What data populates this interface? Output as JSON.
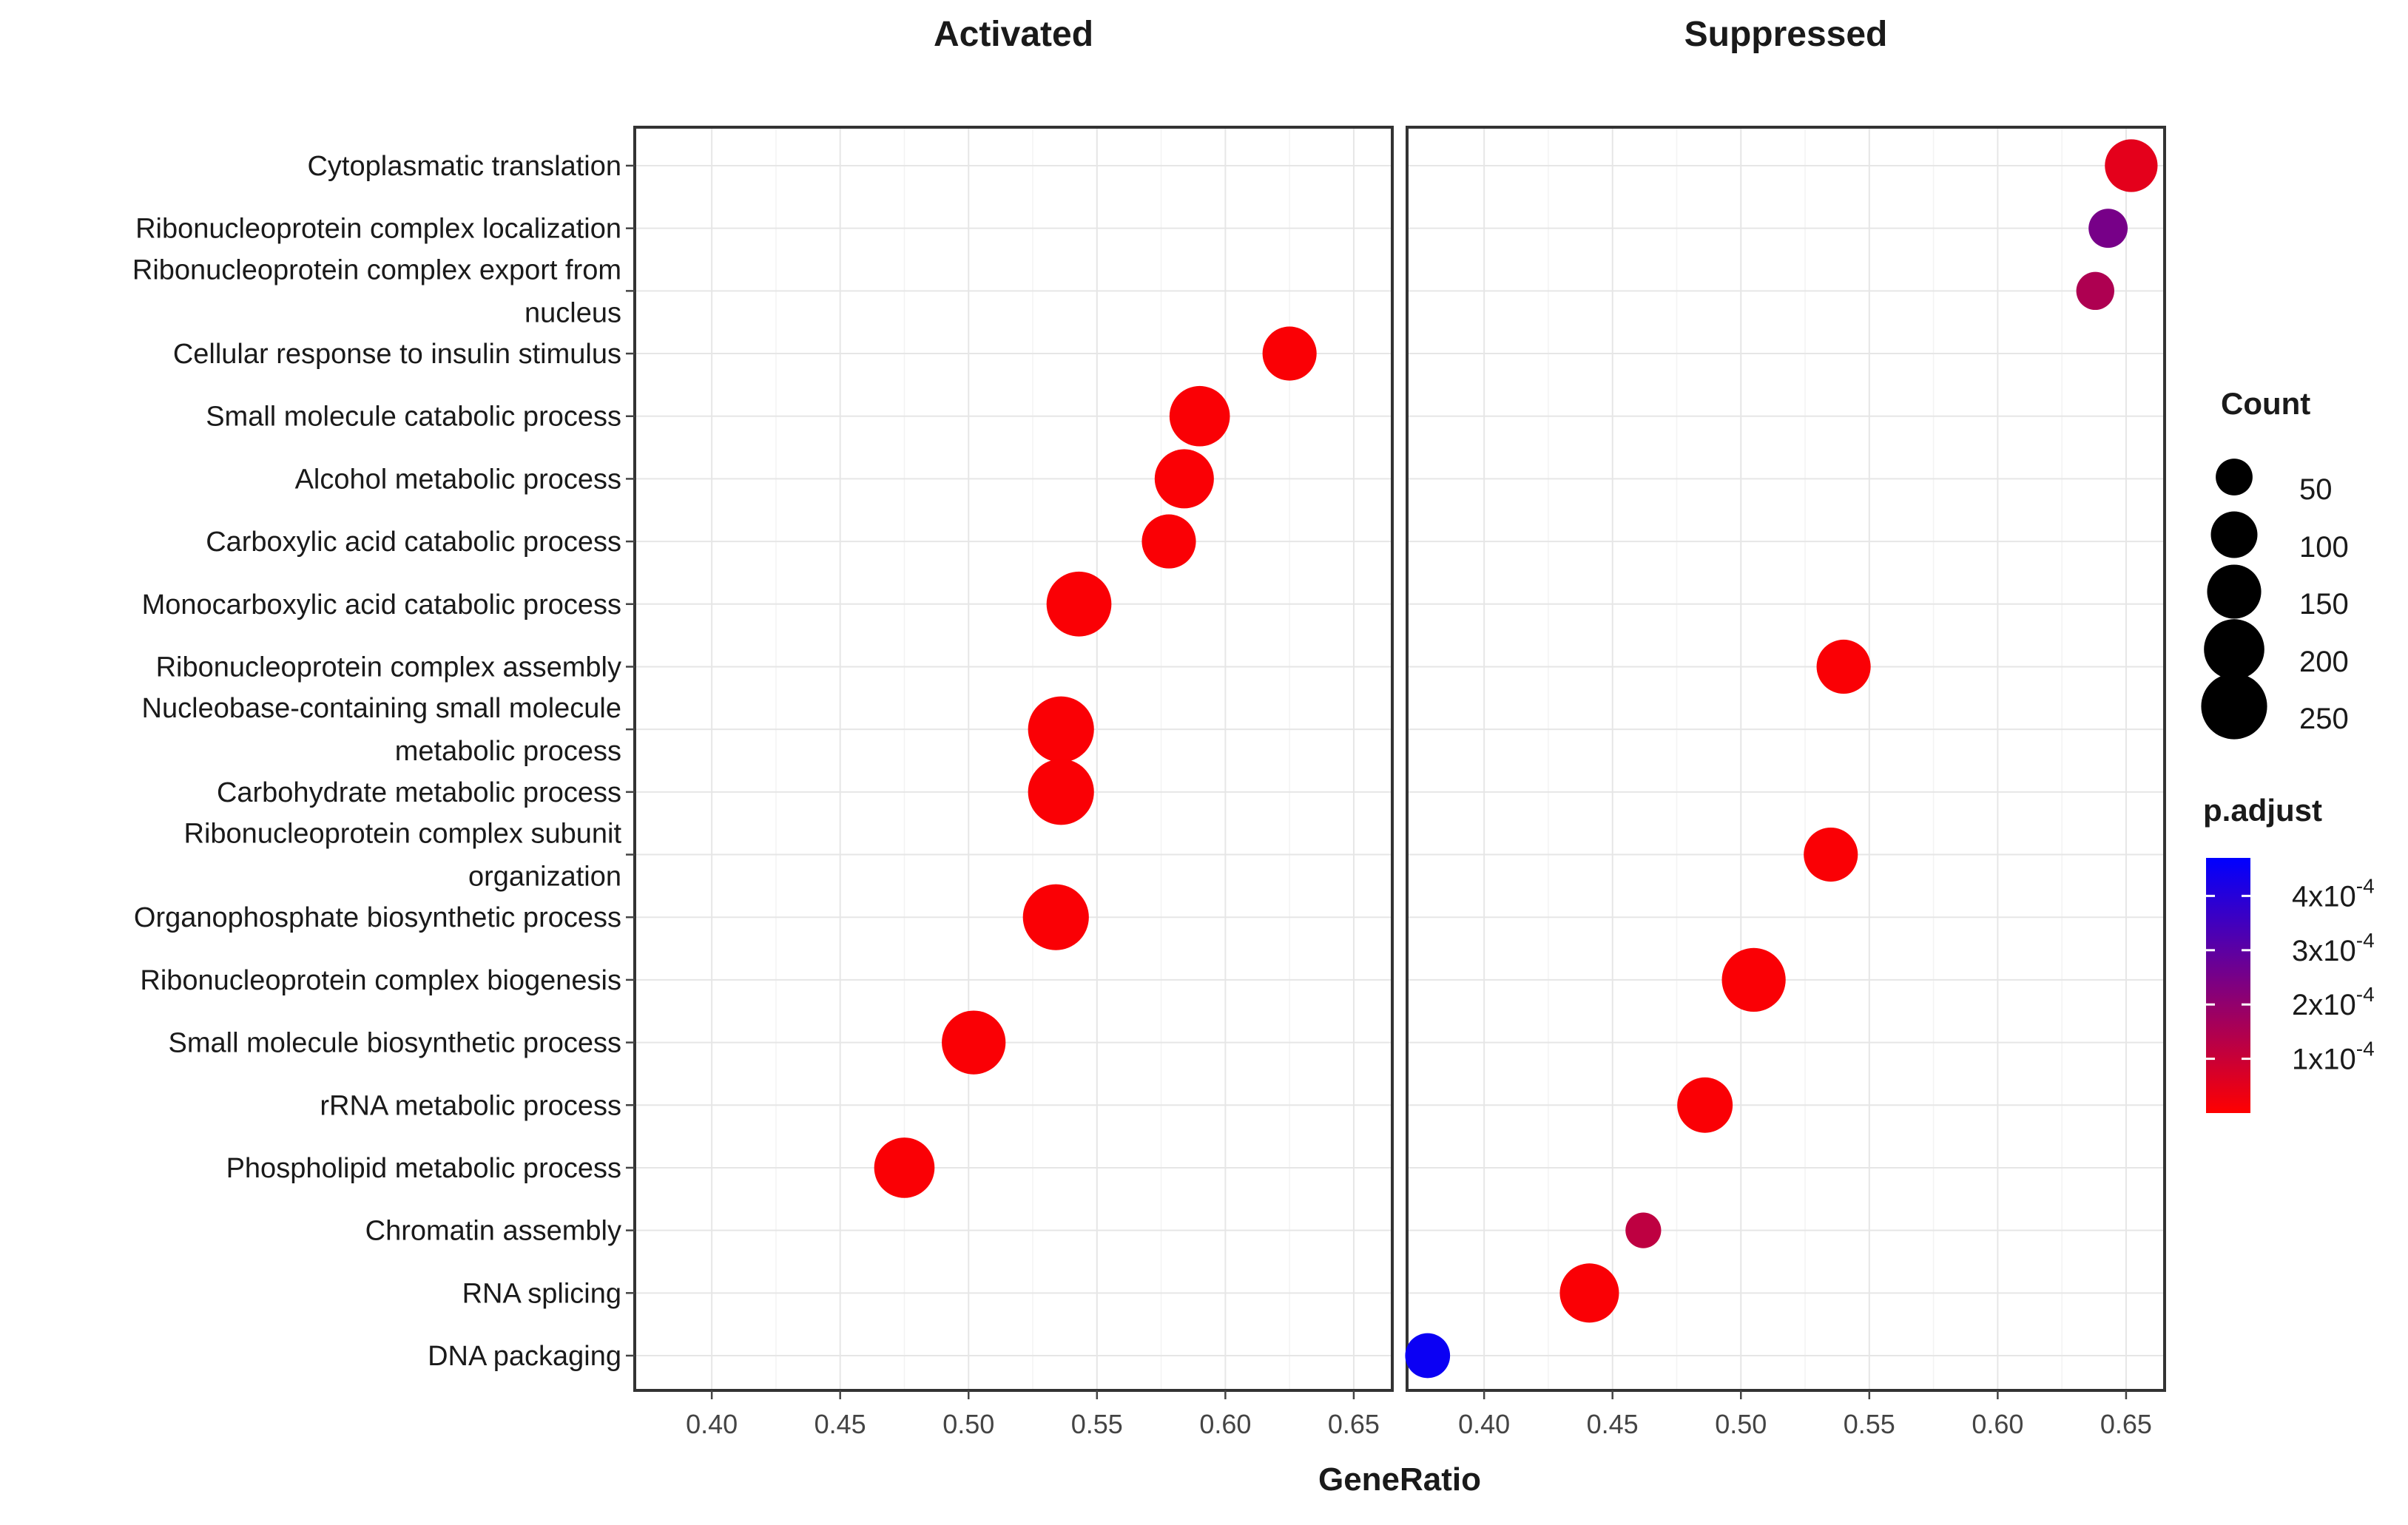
{
  "chart_data": {
    "type": "scatter",
    "facets": [
      "Activated",
      "Suppressed"
    ],
    "categories": [
      [
        "Cytoplasmatic translation"
      ],
      [
        "Ribonucleoprotein complex localization"
      ],
      [
        "Ribonucleoprotein complex export from",
        "nucleus"
      ],
      [
        "Cellular response to insulin stimulus"
      ],
      [
        "Small molecule catabolic process"
      ],
      [
        "Alcohol metabolic process"
      ],
      [
        "Carboxylic acid catabolic process"
      ],
      [
        "Monocarboxylic acid catabolic process"
      ],
      [
        "Ribonucleoprotein complex assembly"
      ],
      [
        "Nucleobase-containing small molecule",
        "metabolic process"
      ],
      [
        "Carbohydrate metabolic process"
      ],
      [
        "Ribonucleoprotein complex subunit",
        "organization"
      ],
      [
        "Organophosphate biosynthetic process"
      ],
      [
        "Ribonucleoprotein complex biogenesis"
      ],
      [
        "Small molecule biosynthetic process"
      ],
      [
        "rRNA metabolic process"
      ],
      [
        "Phospholipid metabolic process"
      ],
      [
        "Chromatin assembly"
      ],
      [
        "RNA splicing"
      ],
      [
        "DNA packaging"
      ]
    ],
    "xlabel": "GeneRatio",
    "xlim": [
      0.37,
      0.665
    ],
    "xticks": [
      0.4,
      0.45,
      0.5,
      0.55,
      0.6,
      0.65
    ],
    "xtick_labels": [
      "0.40",
      "0.45",
      "0.50",
      "0.55",
      "0.60",
      "0.65"
    ],
    "grid": true,
    "points": [
      {
        "facet": "Activated",
        "category": 3,
        "gene_ratio": 0.625,
        "count": 150,
        "p_adjust": 1e-05
      },
      {
        "facet": "Activated",
        "category": 4,
        "gene_ratio": 0.59,
        "count": 200,
        "p_adjust": 1e-05
      },
      {
        "facet": "Activated",
        "category": 5,
        "gene_ratio": 0.584,
        "count": 190,
        "p_adjust": 1e-05
      },
      {
        "facet": "Activated",
        "category": 6,
        "gene_ratio": 0.578,
        "count": 150,
        "p_adjust": 1e-05
      },
      {
        "facet": "Activated",
        "category": 7,
        "gene_ratio": 0.543,
        "count": 240,
        "p_adjust": 1e-05
      },
      {
        "facet": "Activated",
        "category": 9,
        "gene_ratio": 0.536,
        "count": 250,
        "p_adjust": 1e-05
      },
      {
        "facet": "Activated",
        "category": 10,
        "gene_ratio": 0.536,
        "count": 250,
        "p_adjust": 1e-05
      },
      {
        "facet": "Activated",
        "category": 12,
        "gene_ratio": 0.534,
        "count": 250,
        "p_adjust": 1e-05
      },
      {
        "facet": "Activated",
        "category": 14,
        "gene_ratio": 0.502,
        "count": 230,
        "p_adjust": 1e-05
      },
      {
        "facet": "Activated",
        "category": 16,
        "gene_ratio": 0.475,
        "count": 200,
        "p_adjust": 1e-05
      },
      {
        "facet": "Suppressed",
        "category": 0,
        "gene_ratio": 0.652,
        "count": 140,
        "p_adjust": 5e-05
      },
      {
        "facet": "Suppressed",
        "category": 1,
        "gene_ratio": 0.643,
        "count": 60,
        "p_adjust": 0.00025
      },
      {
        "facet": "Suppressed",
        "category": 2,
        "gene_ratio": 0.638,
        "count": 55,
        "p_adjust": 0.00015
      },
      {
        "facet": "Suppressed",
        "category": 8,
        "gene_ratio": 0.54,
        "count": 150,
        "p_adjust": 1e-05
      },
      {
        "facet": "Suppressed",
        "category": 11,
        "gene_ratio": 0.535,
        "count": 150,
        "p_adjust": 1e-05
      },
      {
        "facet": "Suppressed",
        "category": 13,
        "gene_ratio": 0.505,
        "count": 230,
        "p_adjust": 1e-05
      },
      {
        "facet": "Suppressed",
        "category": 15,
        "gene_ratio": 0.486,
        "count": 160,
        "p_adjust": 1e-05
      },
      {
        "facet": "Suppressed",
        "category": 17,
        "gene_ratio": 0.462,
        "count": 45,
        "p_adjust": 0.00012
      },
      {
        "facet": "Suppressed",
        "category": 18,
        "gene_ratio": 0.441,
        "count": 190,
        "p_adjust": 1e-05
      },
      {
        "facet": "Suppressed",
        "category": 19,
        "gene_ratio": 0.378,
        "count": 90,
        "p_adjust": 0.00045
      }
    ],
    "size_legend": {
      "title": "Count",
      "values": [
        50,
        100,
        150,
        200,
        250
      ],
      "labels": [
        "50",
        "100",
        "150",
        "200",
        "250"
      ]
    },
    "color_legend": {
      "title": "p.adjust",
      "range": [
        0,
        0.00047
      ],
      "tick_values": [
        0.0004,
        0.0003,
        0.0002,
        0.0001
      ],
      "tick_labels": [
        "4x10",
        "3x10",
        "2x10",
        "1x10"
      ],
      "tick_exponent": "-4",
      "low_color": "#ff0000",
      "high_color": "#0000ff"
    }
  }
}
